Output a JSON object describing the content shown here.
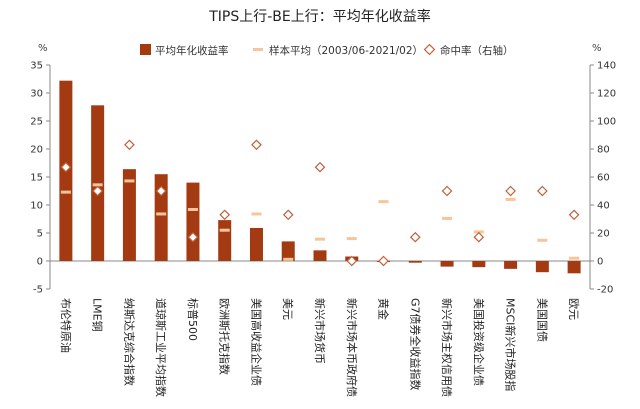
{
  "chart_data": {
    "type": "bar",
    "title": "TIPS上行-BE上行：平均年化收益率",
    "left_unit": "%",
    "right_unit": "%",
    "ylim_left": [
      -5,
      35
    ],
    "yticks_left": [
      -5,
      0,
      5,
      10,
      15,
      20,
      25,
      30,
      35
    ],
    "ylim_right": [
      -20,
      140
    ],
    "yticks_right": [
      -20,
      0,
      20,
      40,
      60,
      80,
      100,
      120,
      140
    ],
    "grid": false,
    "legend_position": "top",
    "categories": [
      "布伦特原油",
      "LME铜",
      "纳斯达克综合指数",
      "道琼斯工业平均指数",
      "标普500",
      "欧洲斯托克指数",
      "美国高收益企业债",
      "美元",
      "新兴市场货币",
      "新兴市场本币政府债",
      "黄金",
      "G7债券全收益指数",
      "新兴市场主权信用债",
      "美国投资级企业债",
      "MSCI新兴市场股指",
      "美国国债",
      "欧元"
    ],
    "series": [
      {
        "name": "平均年化收益率",
        "kind": "bar",
        "axis": "left",
        "color": "#a33a12",
        "values": [
          32.2,
          27.8,
          16.4,
          15.5,
          14.0,
          7.3,
          5.9,
          3.5,
          1.9,
          0.8,
          0.0,
          -0.3,
          -1.0,
          -1.1,
          -1.4,
          -2.0,
          -2.2
        ]
      },
      {
        "name": "样本平均（2003/06-2021/02）",
        "kind": "dash",
        "axis": "left",
        "color": "#f7c59a",
        "values": [
          12.3,
          13.6,
          14.3,
          8.4,
          9.2,
          5.5,
          8.4,
          0.3,
          3.9,
          4.0,
          10.6,
          null,
          7.6,
          5.2,
          11.0,
          3.7,
          0.5
        ]
      },
      {
        "name": "命中率（右轴）",
        "kind": "diamond",
        "axis": "right",
        "color": "#c0603a",
        "values": [
          67,
          50,
          83,
          50,
          17,
          33,
          83,
          33,
          67,
          0,
          0,
          17,
          50,
          17,
          50,
          50,
          33
        ]
      }
    ]
  }
}
